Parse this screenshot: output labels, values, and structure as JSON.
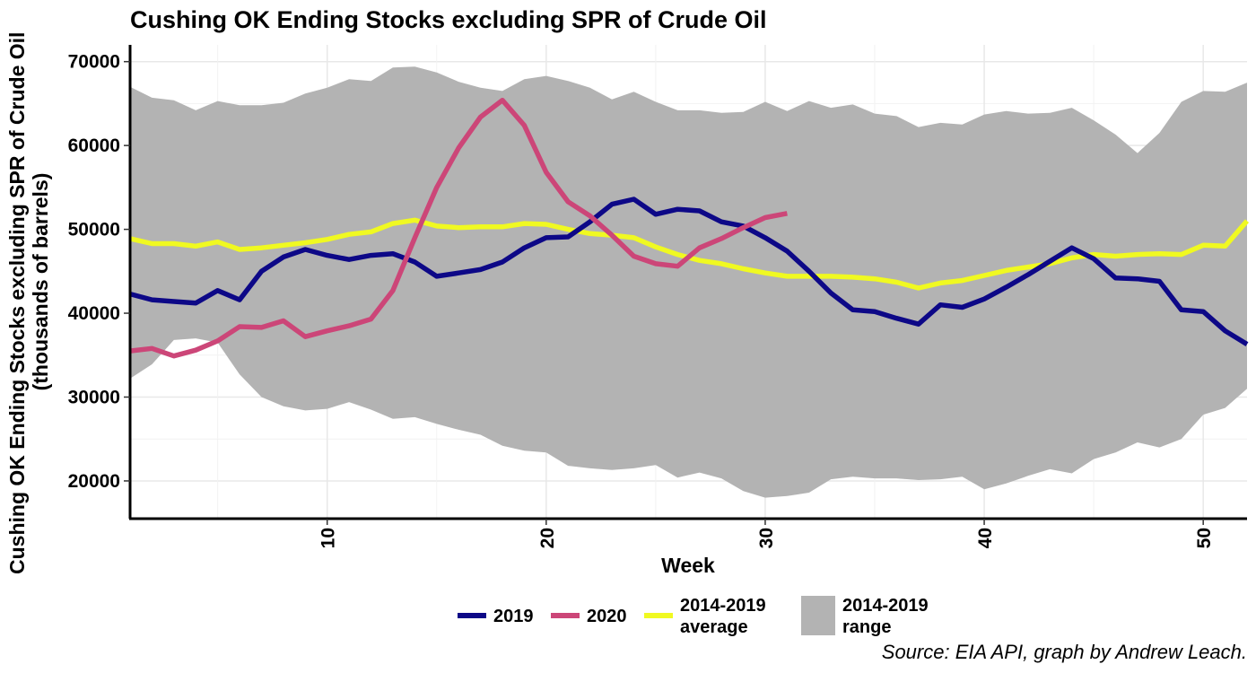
{
  "chart_data": {
    "type": "line",
    "title": "Cushing OK Ending Stocks excluding SPR of Crude Oil",
    "ylabel_line1": "Cushing OK Ending Stocks excluding SPR of Crude Oil",
    "ylabel_line2": "(thousands of barrels)",
    "xlabel": "Week",
    "xlim": [
      1,
      52
    ],
    "ylim": [
      15500,
      72000
    ],
    "x_ticks": [
      10,
      20,
      30,
      40,
      50
    ],
    "y_ticks": [
      20000,
      30000,
      40000,
      50000,
      60000,
      70000
    ],
    "grid": true,
    "legend_position": "bottom",
    "caption": "Source: EIA API, graph by Andrew Leach.",
    "range": {
      "name_line1": "2014-2019",
      "name_line2": "range",
      "color": "#b3b3b3",
      "weeks": [
        1,
        2,
        3,
        4,
        5,
        6,
        7,
        8,
        9,
        10,
        11,
        12,
        13,
        14,
        15,
        16,
        17,
        18,
        19,
        20,
        21,
        22,
        23,
        24,
        25,
        26,
        27,
        28,
        29,
        30,
        31,
        32,
        33,
        34,
        35,
        36,
        37,
        38,
        39,
        40,
        41,
        42,
        43,
        44,
        45,
        46,
        47,
        48,
        49,
        50,
        51,
        52
      ],
      "upper": [
        67000,
        65700,
        65400,
        64200,
        65300,
        64800,
        64800,
        65100,
        66200,
        66900,
        67900,
        67700,
        69300,
        69400,
        68700,
        67600,
        66900,
        66500,
        67900,
        68300,
        67700,
        66900,
        65500,
        66400,
        65200,
        64200,
        64200,
        63900,
        64000,
        65200,
        64100,
        65300,
        64500,
        64900,
        63800,
        63500,
        62200,
        62700,
        62500,
        63700,
        64100,
        63800,
        63900,
        64500,
        63000,
        61300,
        59100,
        61500,
        65200,
        66500,
        66400,
        67500
      ],
      "lower": [
        32200,
        33900,
        36800,
        37000,
        36500,
        32700,
        30000,
        28900,
        28400,
        28600,
        29400,
        28500,
        27400,
        27600,
        26800,
        26100,
        25500,
        24200,
        23600,
        23400,
        21800,
        21500,
        21300,
        21500,
        21900,
        20400,
        21000,
        20300,
        18800,
        18000,
        18200,
        18600,
        20200,
        20500,
        20300,
        20300,
        20100,
        20200,
        20500,
        19000,
        19700,
        20600,
        21400,
        20900,
        22600,
        23400,
        24600,
        24000,
        25000,
        27900,
        28700,
        31000
      ]
    },
    "series": [
      {
        "name": "2019",
        "color": "#0d0887",
        "weeks": [
          1,
          2,
          3,
          4,
          5,
          6,
          7,
          8,
          9,
          10,
          11,
          12,
          13,
          14,
          15,
          16,
          17,
          18,
          19,
          20,
          21,
          22,
          23,
          24,
          25,
          26,
          27,
          28,
          29,
          30,
          31,
          32,
          33,
          34,
          35,
          36,
          37,
          38,
          39,
          40,
          41,
          42,
          43,
          44,
          45,
          46,
          47,
          48,
          49,
          50,
          51,
          52
        ],
        "values": [
          42300,
          41600,
          41400,
          41200,
          42700,
          41600,
          45000,
          46700,
          47600,
          46900,
          46400,
          46900,
          47100,
          46100,
          44400,
          44800,
          45200,
          46100,
          47800,
          49000,
          49100,
          50900,
          53000,
          53600,
          51800,
          52400,
          52200,
          50900,
          50400,
          49000,
          47400,
          45000,
          42400,
          40400,
          40200,
          39400,
          38700,
          41000,
          40700,
          41700,
          43100,
          44600,
          46200,
          47800,
          46500,
          44200,
          44100,
          43800,
          40400,
          40200,
          37900,
          36300
        ]
      },
      {
        "name": "2020",
        "color": "#cc4678",
        "weeks": [
          1,
          2,
          3,
          4,
          5,
          6,
          7,
          8,
          9,
          10,
          11,
          12,
          13,
          14,
          15,
          16,
          17,
          18,
          19,
          20,
          21,
          22,
          23,
          24,
          25,
          26,
          27,
          28,
          29,
          30,
          31
        ],
        "values": [
          35500,
          35800,
          34900,
          35600,
          36700,
          38400,
          38300,
          39100,
          37200,
          37900,
          38500,
          39300,
          42700,
          49000,
          55000,
          59700,
          63400,
          65400,
          62400,
          56800,
          53300,
          51600,
          49300,
          46800,
          45900,
          45600,
          47800,
          48900,
          50200,
          51400,
          51900
        ]
      },
      {
        "name": "2014-2019 average",
        "name_line1": "2014-2019",
        "name_line2": "average",
        "color": "#f0f921",
        "weeks": [
          1,
          2,
          3,
          4,
          5,
          6,
          7,
          8,
          9,
          10,
          11,
          12,
          13,
          14,
          15,
          16,
          17,
          18,
          19,
          20,
          21,
          22,
          23,
          24,
          25,
          26,
          27,
          28,
          29,
          30,
          31,
          32,
          33,
          34,
          35,
          36,
          37,
          38,
          39,
          40,
          41,
          42,
          43,
          44,
          45,
          46,
          47,
          48,
          49,
          50,
          51,
          52
        ],
        "values": [
          48900,
          48300,
          48300,
          48000,
          48500,
          47600,
          47800,
          48100,
          48400,
          48800,
          49400,
          49700,
          50700,
          51100,
          50400,
          50200,
          50300,
          50300,
          50700,
          50600,
          50000,
          49500,
          49300,
          49000,
          47900,
          47000,
          46300,
          45900,
          45300,
          44800,
          44400,
          44400,
          44400,
          44300,
          44100,
          43700,
          43000,
          43600,
          43900,
          44500,
          45100,
          45500,
          45900,
          46600,
          47000,
          46800,
          47000,
          47100,
          47000,
          48100,
          48000,
          51000
        ]
      }
    ]
  }
}
